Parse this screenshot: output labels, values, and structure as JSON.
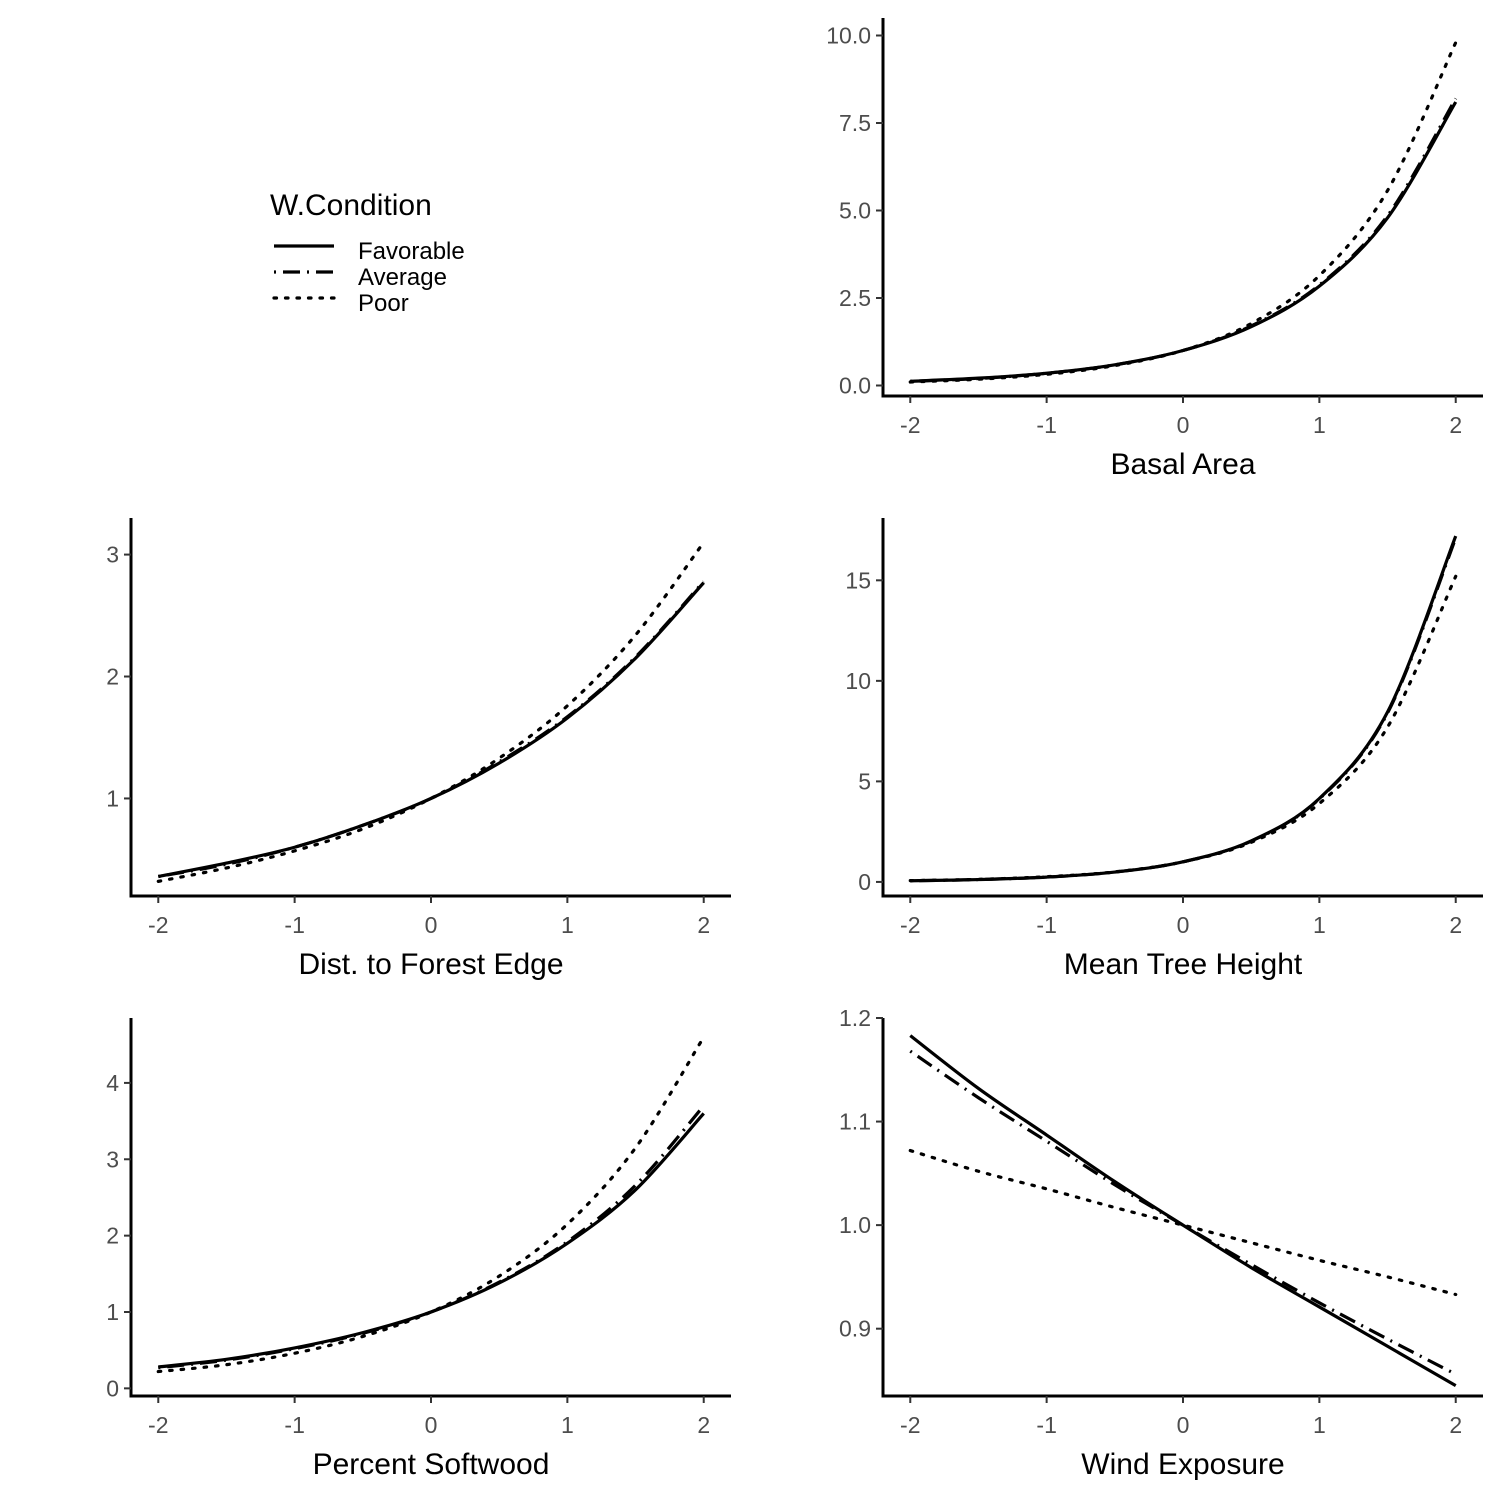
{
  "legend": {
    "title": "W.Condition",
    "items": [
      {
        "label": "Favorable",
        "dash": "solid"
      },
      {
        "label": "Average",
        "dash": "dashdot"
      },
      {
        "label": "Poor",
        "dash": "dotted"
      }
    ]
  },
  "chart_data": [
    {
      "type": "line",
      "xlabel": "Basal Area",
      "x_ticks": [
        -2,
        -1,
        0,
        1,
        2
      ],
      "x_tick_labels": [
        "-2",
        "-1",
        "0",
        "1",
        "2"
      ],
      "y_ticks": [
        0,
        2.5,
        5,
        7.5,
        10
      ],
      "y_tick_labels": [
        "0.0",
        "2.5",
        "5.0",
        "7.5",
        "10.0"
      ],
      "xlim": [
        -2.2,
        2.2
      ],
      "ylim": [
        -0.3,
        10.5
      ],
      "x": [
        -2,
        -1.5,
        -1,
        -0.5,
        0,
        0.5,
        1,
        1.5,
        2
      ],
      "series": [
        {
          "name": "Favorable",
          "values": [
            0.12,
            0.21,
            0.35,
            0.59,
            1.0,
            1.68,
            2.84,
            4.79,
            8.1
          ]
        },
        {
          "name": "Average",
          "values": [
            0.12,
            0.2,
            0.35,
            0.59,
            1.0,
            1.7,
            2.87,
            4.85,
            8.2
          ]
        },
        {
          "name": "Poor",
          "values": [
            0.1,
            0.18,
            0.32,
            0.57,
            1.0,
            1.77,
            3.14,
            5.57,
            9.8
          ]
        }
      ]
    },
    {
      "type": "line",
      "xlabel": "Dist. to Forest Edge",
      "x_ticks": [
        -2,
        -1,
        0,
        1,
        2
      ],
      "x_tick_labels": [
        "-2",
        "-1",
        "0",
        "1",
        "2"
      ],
      "y_ticks": [
        1,
        2,
        3
      ],
      "y_tick_labels": [
        "1",
        "2",
        "3"
      ],
      "xlim": [
        -2.2,
        2.2
      ],
      "ylim": [
        0.2,
        3.3
      ],
      "x": [
        -2,
        -1.5,
        -1,
        -0.5,
        0,
        0.5,
        1,
        1.5,
        2
      ],
      "series": [
        {
          "name": "Favorable",
          "values": [
            0.36,
            0.47,
            0.6,
            0.78,
            1.0,
            1.29,
            1.66,
            2.15,
            2.77
          ]
        },
        {
          "name": "Average",
          "values": [
            0.36,
            0.46,
            0.6,
            0.78,
            1.0,
            1.3,
            1.67,
            2.16,
            2.78
          ]
        },
        {
          "name": "Poor",
          "values": [
            0.32,
            0.43,
            0.57,
            0.75,
            1.0,
            1.33,
            1.76,
            2.34,
            3.1
          ]
        }
      ]
    },
    {
      "type": "line",
      "xlabel": "Mean Tree Height",
      "x_ticks": [
        -2,
        -1,
        0,
        1,
        2
      ],
      "x_tick_labels": [
        "-2",
        "-1",
        "0",
        "1",
        "2"
      ],
      "y_ticks": [
        0,
        5,
        10,
        15
      ],
      "y_tick_labels": [
        "0",
        "5",
        "10",
        "15"
      ],
      "xlim": [
        -2.2,
        2.2
      ],
      "ylim": [
        -0.7,
        18.1
      ],
      "x": [
        -2,
        -1.5,
        -1,
        -0.5,
        0,
        0.5,
        1,
        1.5,
        2
      ],
      "series": [
        {
          "name": "Favorable",
          "values": [
            0.058,
            0.118,
            0.24,
            0.49,
            1.0,
            2.04,
            4.15,
            8.45,
            17.2
          ]
        },
        {
          "name": "Average",
          "values": [
            0.058,
            0.118,
            0.24,
            0.49,
            1.0,
            2.03,
            4.13,
            8.4,
            17.1
          ]
        },
        {
          "name": "Poor",
          "values": [
            0.066,
            0.128,
            0.26,
            0.5,
            1.0,
            1.97,
            3.9,
            7.7,
            15.2
          ]
        }
      ]
    },
    {
      "type": "line",
      "xlabel": "Percent Softwood",
      "x_ticks": [
        -2,
        -1,
        0,
        1,
        2
      ],
      "x_tick_labels": [
        "-2",
        "-1",
        "0",
        "1",
        "2"
      ],
      "y_ticks": [
        0,
        1,
        2,
        3,
        4
      ],
      "y_tick_labels": [
        "0",
        "1",
        "2",
        "3",
        "4"
      ],
      "xlim": [
        -2.2,
        2.2
      ],
      "ylim": [
        -0.1,
        4.85
      ],
      "x": [
        -2,
        -1.5,
        -1,
        -0.5,
        0,
        0.5,
        1,
        1.5,
        2
      ],
      "series": [
        {
          "name": "Favorable",
          "values": [
            0.28,
            0.38,
            0.53,
            0.73,
            1.0,
            1.38,
            1.9,
            2.6,
            3.6
          ]
        },
        {
          "name": "Average",
          "values": [
            0.27,
            0.37,
            0.52,
            0.72,
            1.0,
            1.39,
            1.92,
            2.66,
            3.7
          ]
        },
        {
          "name": "Poor",
          "values": [
            0.22,
            0.31,
            0.46,
            0.68,
            1.0,
            1.47,
            2.15,
            3.15,
            4.6
          ]
        }
      ]
    },
    {
      "type": "line",
      "xlabel": "Wind Exposure",
      "x_ticks": [
        -2,
        -1,
        0,
        1,
        2
      ],
      "x_tick_labels": [
        "-2",
        "-1",
        "0",
        "1",
        "2"
      ],
      "y_ticks": [
        0.9,
        1.0,
        1.1,
        1.2
      ],
      "y_tick_labels": [
        "0.9",
        "1.0",
        "1.1",
        "1.2"
      ],
      "xlim": [
        -2.2,
        2.2
      ],
      "ylim": [
        0.835,
        1.2
      ],
      "x": [
        -2,
        -1.5,
        -1,
        -0.5,
        0,
        0.5,
        1,
        1.5,
        2
      ],
      "series": [
        {
          "name": "Favorable",
          "values": [
            1.183,
            1.132,
            1.087,
            1.042,
            1.0,
            0.959,
            0.921,
            0.883,
            0.845
          ]
        },
        {
          "name": "Average",
          "values": [
            1.168,
            1.123,
            1.081,
            1.039,
            1.0,
            0.962,
            0.925,
            0.89,
            0.856
          ]
        },
        {
          "name": "Poor",
          "values": [
            1.072,
            1.052,
            1.035,
            1.017,
            1.0,
            0.983,
            0.966,
            0.95,
            0.933
          ]
        }
      ]
    }
  ]
}
